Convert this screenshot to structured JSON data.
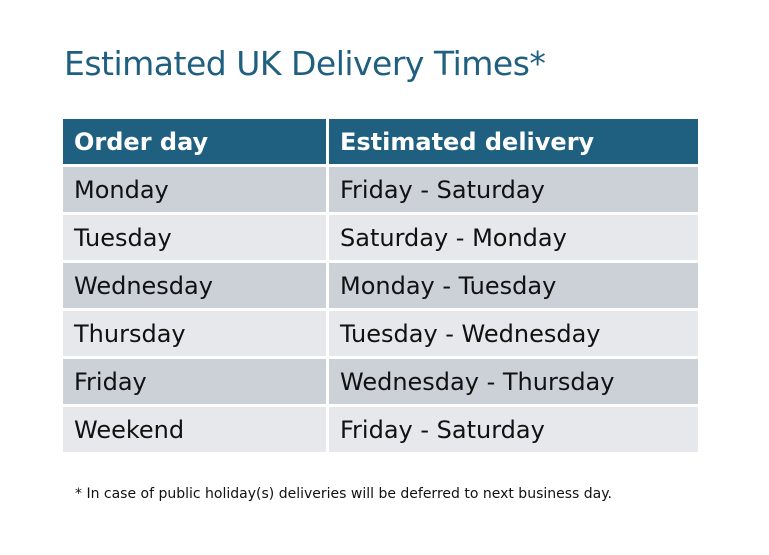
{
  "title": "Estimated UK Delivery Times*",
  "table": {
    "headers": [
      "Order day",
      "Estimated delivery"
    ],
    "rows": [
      [
        "Monday",
        "Friday - Saturday"
      ],
      [
        "Tuesday",
        "Saturday - Monday"
      ],
      [
        "Wednesday",
        "Monday - Tuesday"
      ],
      [
        "Thursday",
        "Tuesday - Wednesday"
      ],
      [
        "Friday",
        "Wednesday - Thursday"
      ],
      [
        "Weekend",
        "Friday - Saturday"
      ]
    ]
  },
  "footnote": "* In case of public holiday(s) deliveries will be deferred to next business day.",
  "colors": {
    "header": "#1f5f80",
    "row_odd": "#ccd0d7",
    "row_even": "#e6e8eb"
  }
}
